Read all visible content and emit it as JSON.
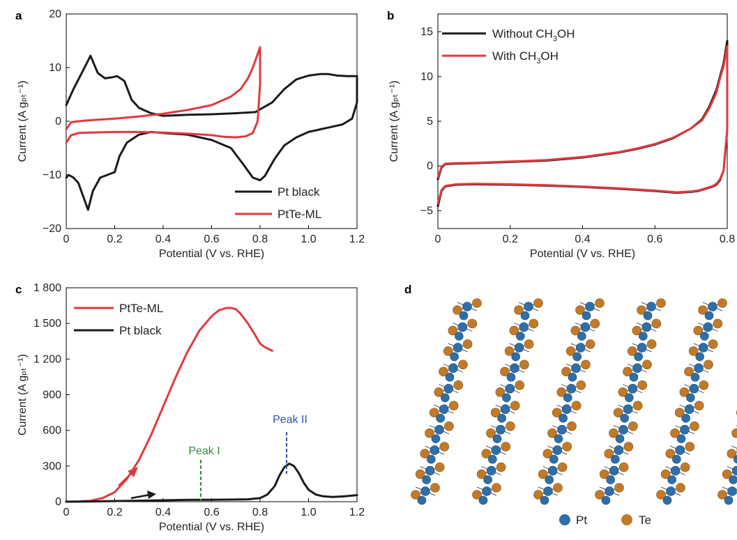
{
  "colors": {
    "black": "#1a1a1a",
    "red": "#e0393e",
    "green": "#2e8b3a",
    "blue": "#2f4fa8",
    "pt_atom": "#2f6fa8",
    "te_atom": "#c07a2a"
  },
  "panels": {
    "a": {
      "label": "a",
      "xlabel": "Potential (V vs. RHE)",
      "ylabel": "Current (A gₚₜ⁻¹)",
      "xticks": [
        "0",
        "0.2",
        "0.4",
        "0.6",
        "0.8",
        "1.0",
        "1.2"
      ],
      "yticks": [
        "20",
        "10",
        "0",
        "−10",
        "−20"
      ],
      "legend": [
        "Pt black",
        "PtTe-ML"
      ]
    },
    "b": {
      "label": "b",
      "xlabel": "Potential (V vs. RHE)",
      "ylabel": "Current (A gₚₜ⁻¹)",
      "xticks": [
        "0",
        "0.2",
        "0.4",
        "0.6",
        "0.8"
      ],
      "yticks": [
        "15",
        "10",
        "5",
        "0",
        "−5"
      ],
      "legend_without": "Without CH",
      "legend_with": "With CH",
      "legend_sub": "3",
      "legend_suffix": "OH"
    },
    "c": {
      "label": "c",
      "xlabel": "Potential (V vs. RHE)",
      "ylabel": "Current (A gₚₜ⁻¹)",
      "xticks": [
        "0",
        "0.2",
        "0.4",
        "0.6",
        "0.8",
        "1.0",
        "1.2"
      ],
      "yticks": [
        "1 800",
        "1 500",
        "1 200",
        "900",
        "600",
        "300",
        "0"
      ],
      "legend": [
        "PtTe-ML",
        "Pt black"
      ],
      "peak1": "Peak I",
      "peak2": "Peak II"
    },
    "d": {
      "label": "d",
      "legend_pt": "Pt",
      "legend_te": "Te"
    }
  },
  "chart_data": [
    {
      "panel": "a",
      "type": "line",
      "xlim": [
        0,
        1.2
      ],
      "ylim": [
        -20,
        20
      ],
      "series": [
        {
          "name": "Pt black",
          "color": "#1a1a1a",
          "x": [
            0,
            0.03,
            0.07,
            0.1,
            0.13,
            0.16,
            0.19,
            0.21,
            0.24,
            0.27,
            0.3,
            0.35,
            0.4,
            0.5,
            0.6,
            0.7,
            0.78,
            0.85,
            0.9,
            0.95,
            1.0,
            1.05,
            1.08,
            1.12,
            1.16,
            1.2,
            1.2,
            1.18,
            1.14,
            1.1,
            1.05,
            1.0,
            0.95,
            0.9,
            0.86,
            0.82,
            0.8,
            0.77,
            0.73,
            0.68,
            0.6,
            0.5,
            0.4,
            0.35,
            0.3,
            0.25,
            0.22,
            0.2,
            0.17,
            0.14,
            0.11,
            0.09,
            0.07,
            0.05,
            0.03,
            0.01,
            0
          ],
          "y": [
            3,
            6,
            9.5,
            12.2,
            9,
            8,
            8.2,
            8.4,
            7.5,
            4,
            2.5,
            1.5,
            1,
            1.2,
            1.3,
            1.5,
            1.7,
            3.5,
            6,
            7.8,
            8.5,
            8.8,
            8.8,
            8.5,
            8.4,
            8.4,
            3.5,
            0.5,
            -0.6,
            -1,
            -1.5,
            -2,
            -3,
            -4.5,
            -7,
            -10.2,
            -11,
            -10.5,
            -8,
            -5,
            -3.5,
            -2.5,
            -2.2,
            -2,
            -2.5,
            -4,
            -6.5,
            -9.5,
            -10,
            -10.5,
            -13,
            -16.5,
            -14,
            -11.5,
            -10.5,
            -10,
            -10.5
          ]
        },
        {
          "name": "PtTe-ML",
          "color": "#e0393e",
          "x": [
            0,
            0.02,
            0.05,
            0.1,
            0.2,
            0.3,
            0.4,
            0.5,
            0.6,
            0.68,
            0.72,
            0.75,
            0.77,
            0.79,
            0.8,
            0.8,
            0.79,
            0.77,
            0.74,
            0.7,
            0.65,
            0.6,
            0.5,
            0.4,
            0.3,
            0.2,
            0.1,
            0.05,
            0.02,
            0
          ],
          "y": [
            -1.5,
            -0.2,
            0,
            0.2,
            0.5,
            0.9,
            1.4,
            2.1,
            3,
            4.6,
            6,
            8,
            10,
            12.5,
            13.8,
            7,
            0,
            -2.2,
            -2.8,
            -3,
            -2.9,
            -2.6,
            -2.3,
            -2.1,
            -2,
            -2,
            -2.1,
            -2.2,
            -2.6,
            -4
          ]
        }
      ]
    },
    {
      "panel": "b",
      "type": "line",
      "xlim": [
        0,
        0.8
      ],
      "ylim": [
        -7,
        17
      ],
      "series": [
        {
          "name": "Without CH3OH",
          "color": "#1a1a1a",
          "x": [
            0,
            0.01,
            0.02,
            0.04,
            0.1,
            0.2,
            0.3,
            0.4,
            0.5,
            0.55,
            0.6,
            0.65,
            0.7,
            0.73,
            0.75,
            0.77,
            0.78,
            0.79,
            0.8,
            0.8,
            0.79,
            0.78,
            0.77,
            0.76,
            0.74,
            0.72,
            0.7,
            0.66,
            0.6,
            0.5,
            0.4,
            0.3,
            0.2,
            0.1,
            0.05,
            0.02,
            0.01,
            0
          ],
          "y": [
            -1.5,
            -0.2,
            0.2,
            0.25,
            0.3,
            0.45,
            0.6,
            0.95,
            1.5,
            1.9,
            2.4,
            3.1,
            4.2,
            5.2,
            6.6,
            8.5,
            10,
            11.5,
            14,
            4,
            -0.5,
            -1.6,
            -2.1,
            -2.3,
            -2.55,
            -2.8,
            -2.9,
            -3,
            -2.8,
            -2.55,
            -2.35,
            -2.2,
            -2.1,
            -2.05,
            -2.1,
            -2.3,
            -2.8,
            -4.5
          ]
        },
        {
          "name": "With CH3OH",
          "color": "#e0393e",
          "x": [
            0,
            0.01,
            0.02,
            0.04,
            0.1,
            0.2,
            0.3,
            0.4,
            0.5,
            0.55,
            0.6,
            0.65,
            0.7,
            0.73,
            0.75,
            0.77,
            0.78,
            0.79,
            0.8,
            0.8,
            0.79,
            0.78,
            0.77,
            0.76,
            0.74,
            0.72,
            0.7,
            0.66,
            0.6,
            0.5,
            0.4,
            0.3,
            0.2,
            0.1,
            0.05,
            0.02,
            0.01,
            0
          ],
          "y": [
            -1.3,
            -0.1,
            0.25,
            0.3,
            0.35,
            0.5,
            0.65,
            1.0,
            1.55,
            1.95,
            2.45,
            3.15,
            4.2,
            5.1,
            6.4,
            8.2,
            9.8,
            11.2,
            13.4,
            4,
            -0.5,
            -1.5,
            -2.0,
            -2.25,
            -2.5,
            -2.75,
            -2.85,
            -2.95,
            -2.75,
            -2.5,
            -2.3,
            -2.15,
            -2.05,
            -2.0,
            -2.05,
            -2.25,
            -2.7,
            -4.2
          ]
        }
      ]
    },
    {
      "panel": "c",
      "type": "line",
      "xlim": [
        0,
        1.2
      ],
      "ylim": [
        0,
        1800
      ],
      "series": [
        {
          "name": "PtTe-ML",
          "color": "#e0393e",
          "x": [
            0,
            0.05,
            0.1,
            0.15,
            0.2,
            0.25,
            0.3,
            0.35,
            0.4,
            0.45,
            0.5,
            0.55,
            0.6,
            0.63,
            0.66,
            0.68,
            0.7,
            0.72,
            0.75,
            0.78,
            0.8,
            0.82,
            0.85
          ],
          "y": [
            0,
            2,
            8,
            30,
            80,
            190,
            350,
            560,
            800,
            1040,
            1260,
            1440,
            1560,
            1610,
            1630,
            1630,
            1620,
            1580,
            1500,
            1400,
            1330,
            1300,
            1270
          ]
        },
        {
          "name": "Pt black",
          "color": "#1a1a1a",
          "x": [
            0,
            0.1,
            0.2,
            0.3,
            0.4,
            0.5,
            0.6,
            0.7,
            0.75,
            0.8,
            0.83,
            0.86,
            0.88,
            0.9,
            0.92,
            0.94,
            0.96,
            0.98,
            1.0,
            1.03,
            1.06,
            1.1,
            1.15,
            1.2
          ],
          "y": [
            0,
            2,
            5,
            8,
            12,
            15,
            16,
            18,
            20,
            30,
            60,
            130,
            220,
            290,
            320,
            300,
            240,
            160,
            100,
            60,
            45,
            40,
            45,
            55
          ]
        }
      ]
    }
  ]
}
